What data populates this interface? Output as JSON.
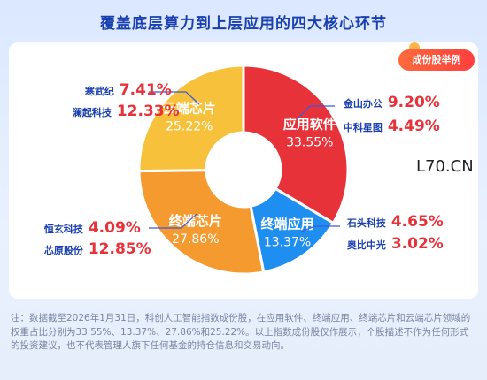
{
  "title": "覆盖底层算力到上层应用的四大核心环节",
  "badge": "成份股举例",
  "watermark": "L70.CN",
  "chart_data": {
    "type": "pie",
    "donut": true,
    "slices": [
      {
        "label": "应用软件",
        "value": 33.55,
        "value_text": "33.55%",
        "color": "#e8323a"
      },
      {
        "label": "终端应用",
        "value": 13.37,
        "value_text": "13.37%",
        "color": "#1e8ef0"
      },
      {
        "label": "终端芯片",
        "value": 27.86,
        "value_text": "27.86%",
        "color": "#f59a2f"
      },
      {
        "label": "云端芯片",
        "value": 25.22,
        "value_text": "25.22%",
        "color": "#f7c13b"
      }
    ]
  },
  "stocks": {
    "top_left": [
      {
        "name": "寒武纪",
        "value": "7.41%"
      },
      {
        "name": "澜起科技",
        "value": "12.33%"
      }
    ],
    "bottom_left": [
      {
        "name": "恒玄科技",
        "value": "4.09%"
      },
      {
        "name": "芯原股份",
        "value": "12.85%"
      }
    ],
    "top_right": [
      {
        "name": "金山办公",
        "value": "9.20%"
      },
      {
        "name": "中科星图",
        "value": "4.49%"
      }
    ],
    "bottom_right": [
      {
        "name": "石头科技",
        "value": "4.65%"
      },
      {
        "name": "奥比中光",
        "value": "3.02%"
      }
    ]
  },
  "note": "注：数据截至2026年1月31日，科创人工智能指数成份股，在应用软件、终端应用、终端芯片和云端芯片领域的权重占比分别为33.55%、13.37%、27.86%和25.22%。以上指数成份股仅作展示，个股描述不作为任何形式的投资建议，也不代表管理人旗下任何基金的持仓信息和交易动向。"
}
